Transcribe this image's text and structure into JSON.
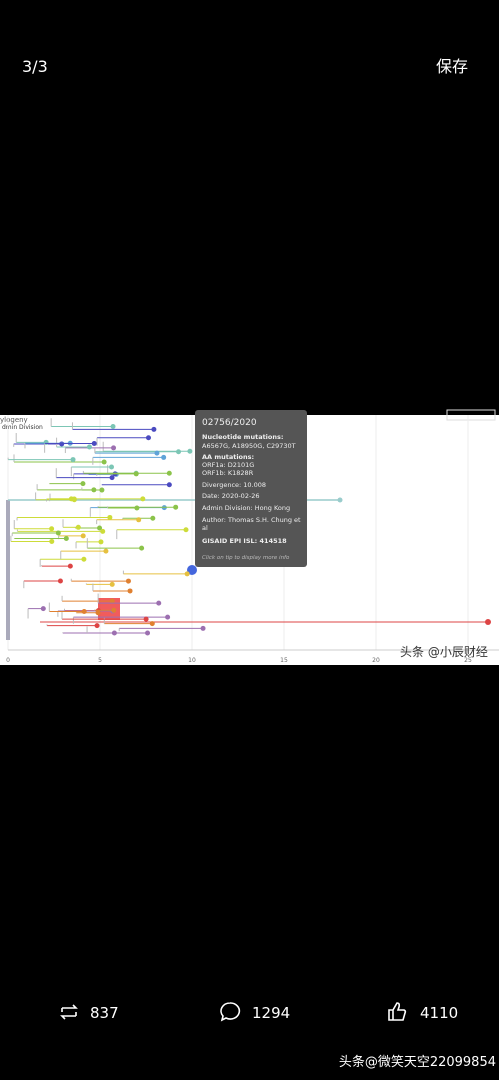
{
  "header": {
    "counter": "3/3",
    "save": "保存"
  },
  "image": {
    "panel_title": "ylogeny",
    "color_by": "dmin Division",
    "tooltip": {
      "strain": "02756/2020",
      "nuc_label": "Nucleotide mutations:",
      "nuc": "A6567G, A18950G, C29730T",
      "aa_label": "AA mutations:",
      "aa1": "ORF1a: D2101G",
      "aa2": "ORF1b: K1828R",
      "divergence": "Divergence: 10.008",
      "date": "Date: 2020-02-26",
      "admin": "Admin Division: Hong Kong",
      "author1": "Author: Thomas S.H. Chung et",
      "author2": "al",
      "gisaid": "GISAID EPI ISL: 414518",
      "hint": "Click on tip to display more info"
    },
    "axis_ticks": [
      "0",
      "5",
      "10",
      "15",
      "20",
      "25"
    ],
    "watermark": "头条 @小辰财经"
  },
  "footer": {
    "reposts": "837",
    "comments": "1294",
    "likes": "4110",
    "watermark": "头条@微笑天空22099854"
  }
}
